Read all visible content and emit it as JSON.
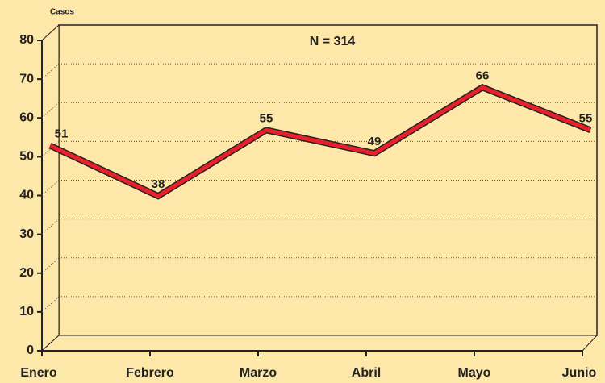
{
  "chart_data": {
    "type": "line",
    "y_label": "Casos",
    "annotation": "N = 314",
    "categories": [
      "Enero",
      "Febrero",
      "Marzo",
      "Abril",
      "Mayo",
      "Junio"
    ],
    "values": [
      51,
      38,
      55,
      49,
      66,
      55
    ],
    "color": "#e8202a",
    "ylim": [
      0,
      80
    ],
    "yticks": [
      0,
      10,
      20,
      30,
      40,
      50,
      60,
      70,
      80
    ],
    "grid": true
  }
}
